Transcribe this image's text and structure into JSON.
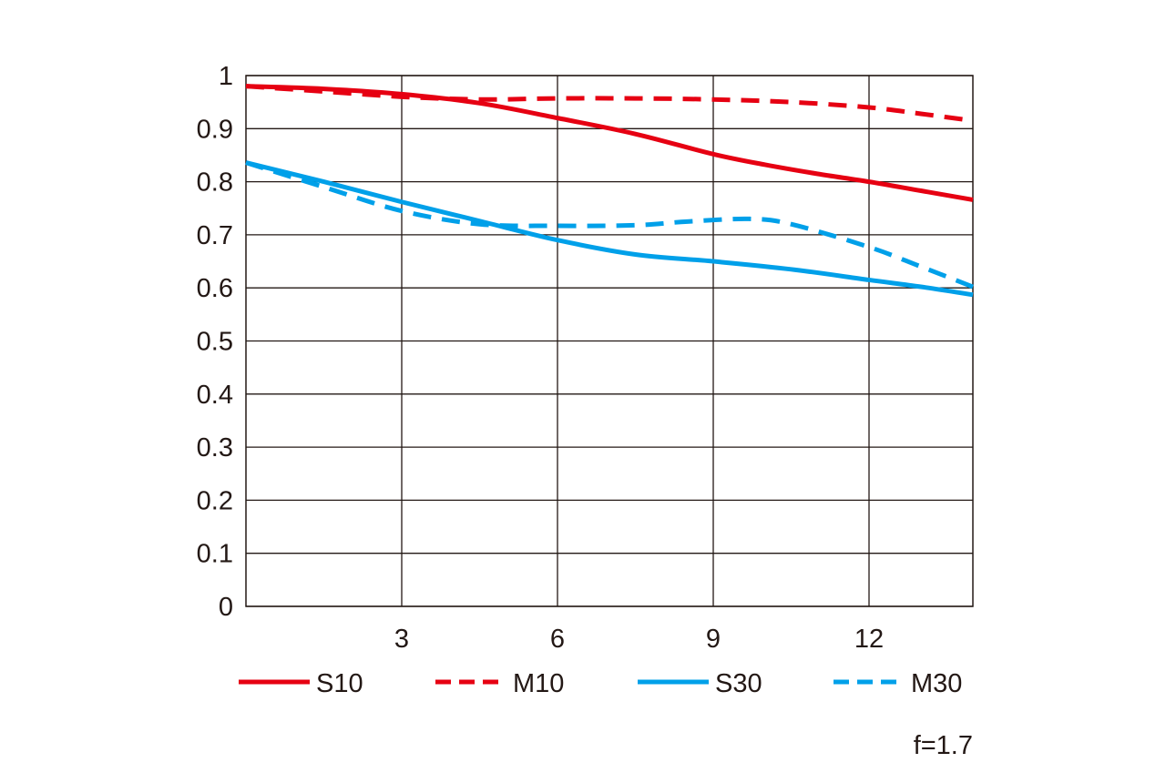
{
  "chart_data": {
    "type": "line",
    "title": "",
    "xlabel": "",
    "ylabel": "",
    "xlim": [
      0,
      14
    ],
    "ylim": [
      0,
      1
    ],
    "x_ticks": [
      "3",
      "6",
      "9",
      "12"
    ],
    "x_tick_values": [
      3,
      6,
      9,
      12
    ],
    "y_ticks": [
      "0",
      "0.1",
      "0.2",
      "0.3",
      "0.4",
      "0.5",
      "0.6",
      "0.7",
      "0.8",
      "0.9",
      "1"
    ],
    "y_tick_values": [
      0,
      0.1,
      0.2,
      0.3,
      0.4,
      0.5,
      0.6,
      0.7,
      0.8,
      0.9,
      1
    ],
    "grid": true,
    "legend_position": "bottom",
    "annotation": "f=1.7",
    "series": [
      {
        "name": "S10",
        "color": "#e60012",
        "dashed": false,
        "x": [
          0,
          1.5,
          3,
          4.5,
          6,
          7.5,
          9,
          10,
          11,
          12,
          13,
          14
        ],
        "y": [
          0.98,
          0.975,
          0.965,
          0.948,
          0.92,
          0.89,
          0.852,
          0.832,
          0.815,
          0.8,
          0.783,
          0.766
        ]
      },
      {
        "name": "M10",
        "color": "#e60012",
        "dashed": true,
        "x": [
          0,
          1.5,
          3,
          4.5,
          6,
          7.5,
          9,
          10.5,
          12,
          13,
          14
        ],
        "y": [
          0.98,
          0.97,
          0.96,
          0.955,
          0.957,
          0.957,
          0.955,
          0.95,
          0.94,
          0.928,
          0.915
        ]
      },
      {
        "name": "S30",
        "color": "#00a0e9",
        "dashed": false,
        "x": [
          0,
          1.5,
          3,
          4.5,
          6,
          7.5,
          9,
          10.5,
          12,
          13,
          14
        ],
        "y": [
          0.836,
          0.8,
          0.762,
          0.726,
          0.69,
          0.663,
          0.65,
          0.635,
          0.615,
          0.602,
          0.587
        ]
      },
      {
        "name": "M30",
        "color": "#00a0e9",
        "dashed": true,
        "x": [
          0,
          1.5,
          3,
          4.5,
          6,
          7.5,
          8.5,
          9.7,
          10.5,
          12,
          13,
          14
        ],
        "y": [
          0.836,
          0.79,
          0.745,
          0.72,
          0.717,
          0.718,
          0.725,
          0.73,
          0.72,
          0.677,
          0.64,
          0.602
        ]
      }
    ]
  }
}
